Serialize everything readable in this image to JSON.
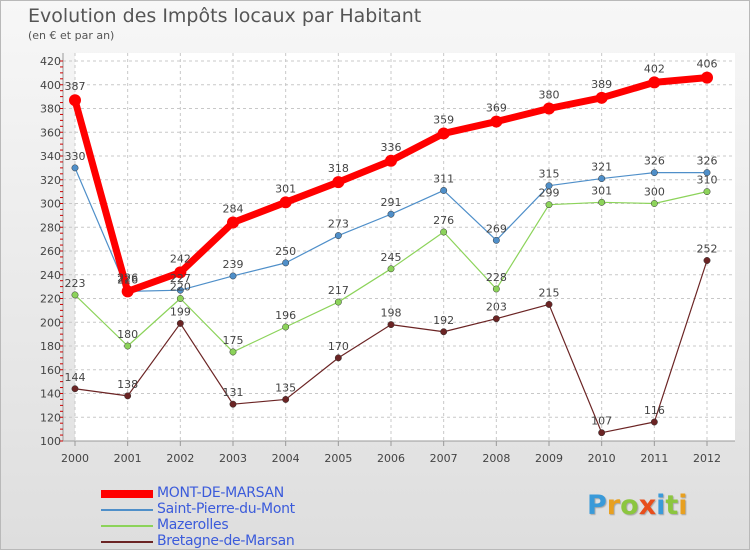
{
  "title": "Evolution des Impôts locaux par Habitant",
  "subtitle": "(en € et par an)",
  "logo": {
    "text": "Proxiti",
    "letters": [
      {
        "ch": "P",
        "color": "#3a9ad9"
      },
      {
        "ch": "r",
        "color": "#e8a020"
      },
      {
        "ch": "o",
        "color": "#8cc63f"
      },
      {
        "ch": "x",
        "color": "#e84e1b"
      },
      {
        "ch": "i",
        "color": "#3a9ad9"
      },
      {
        "ch": "t",
        "color": "#8cc63f"
      },
      {
        "ch": "i",
        "color": "#e8a020"
      }
    ]
  },
  "chart_data": {
    "type": "line",
    "x": [
      "2000",
      "2001",
      "2002",
      "2003",
      "2004",
      "2005",
      "2006",
      "2007",
      "2008",
      "2009",
      "2010",
      "2011",
      "2012"
    ],
    "ylim": [
      100,
      420
    ],
    "yticks": [
      "100",
      "120",
      "140",
      "160",
      "180",
      "200",
      "220",
      "240",
      "260",
      "280",
      "300",
      "320",
      "340",
      "360",
      "380",
      "400",
      "420"
    ],
    "grid": true,
    "legend_position": "bottom-left",
    "series": [
      {
        "name": "MONT-DE-MARSAN",
        "color": "#ff0000",
        "values": [
          387,
          226,
          242,
          284,
          301,
          318,
          336,
          359,
          369,
          380,
          389,
          402,
          406
        ],
        "labels": [
          "387",
          "226",
          "242",
          "284",
          "301",
          "318",
          "336",
          "359",
          "369",
          "380",
          "389",
          "402",
          "406"
        ]
      },
      {
        "name": "Saint-Pierre-du-Mont",
        "color": "#4f8fc9",
        "values": [
          330,
          226,
          227,
          239,
          250,
          273,
          291,
          311,
          269,
          315,
          321,
          326,
          326
        ],
        "labels": [
          "330",
          "226",
          "227",
          "239",
          "250",
          "273",
          "291",
          "311",
          "269",
          "315",
          "321",
          "326",
          "326"
        ]
      },
      {
        "name": "Mazerolles",
        "color": "#8cd35a",
        "values": [
          223,
          180,
          220,
          175,
          196,
          217,
          245,
          276,
          228,
          299,
          301,
          300,
          310
        ],
        "labels": [
          "223",
          "180",
          "220",
          "175",
          "196",
          "217",
          "245",
          "276",
          "228",
          "299",
          "301",
          "300",
          "310"
        ]
      },
      {
        "name": "Bretagne-de-Marsan",
        "color": "#6b2424",
        "values": [
          144,
          138,
          199,
          131,
          135,
          170,
          198,
          192,
          203,
          215,
          107,
          116,
          252
        ],
        "labels": [
          "144",
          "138",
          "199",
          "131",
          "135",
          "170",
          "198",
          "192",
          "203",
          "215",
          "107",
          "116",
          "252"
        ]
      }
    ]
  }
}
